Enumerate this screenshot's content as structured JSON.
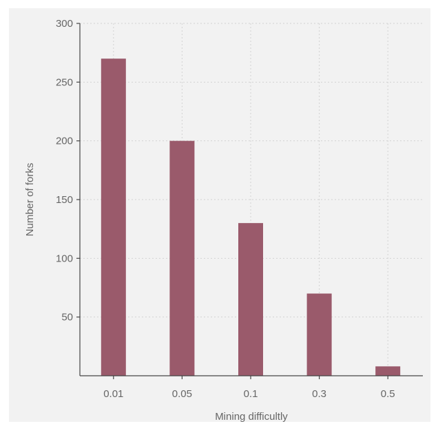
{
  "chart_data": {
    "type": "bar",
    "categories": [
      "0.01",
      "0.05",
      "0.1",
      "0.3",
      "0.5"
    ],
    "values": [
      270,
      200,
      130,
      70,
      8
    ],
    "xlabel": "Mining difficultly",
    "ylabel": "Number of forks",
    "ylim": [
      0,
      300
    ],
    "yticks": [
      50,
      100,
      150,
      200,
      250,
      300
    ],
    "grid": true,
    "bar_color": "#9a5a6b",
    "background_color": "#f2f2f2"
  }
}
